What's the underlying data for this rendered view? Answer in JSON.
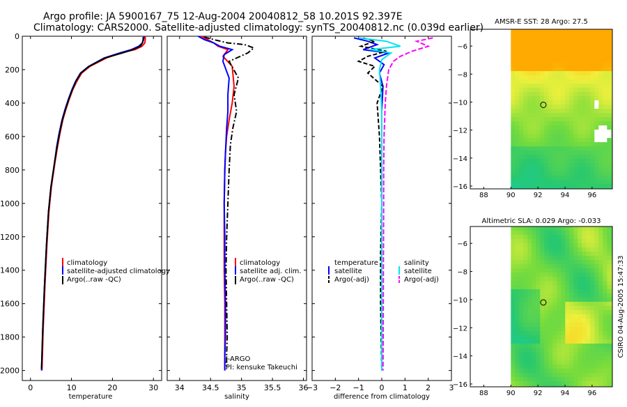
{
  "header": {
    "line1": "Argo profile: JA 5900167_75 12-Aug-2004 20040812_58 10.201S 92.397E",
    "line2": "Climatology: CARS2000. Satellite-adjusted climatology: synTS_20040812.nc (0.039d earlier)"
  },
  "footer_stamp": "CSIRO 04-Aug-2005 15:47:33",
  "colors": {
    "clim": "#ff0000",
    "sat": "#0000ff",
    "argo": "#000000",
    "cyan": "#00e5ee",
    "magenta": "#ff00ff"
  },
  "chart_data": [
    {
      "type": "line",
      "name": "temperature",
      "xlabel": "temperature",
      "xlim": [
        -2,
        32
      ],
      "xticks": [
        0,
        10,
        20,
        30
      ],
      "ylim": [
        2060,
        0
      ],
      "yticks": [
        0,
        200,
        400,
        600,
        800,
        1000,
        1200,
        1400,
        1600,
        1800,
        2000
      ],
      "legend": [
        "climatology",
        "satellite-adjusted climatology",
        "Argo(..raw -QC)"
      ],
      "series": [
        {
          "name": "climatology",
          "color": "#ff0000",
          "x": [
            28.0,
            28.0,
            27.9,
            27.2,
            25.5,
            22.0,
            18.5,
            14.5,
            12.5,
            11.3,
            10.3,
            9.4,
            8.6,
            7.9,
            7.2,
            6.6,
            6.0,
            5.1,
            4.5,
            4.0,
            3.5,
            3.1,
            2.8
          ],
          "y": [
            0,
            20,
            40,
            60,
            80,
            100,
            130,
            180,
            220,
            270,
            320,
            380,
            440,
            500,
            580,
            660,
            750,
            900,
            1050,
            1250,
            1500,
            1750,
            2000
          ]
        },
        {
          "name": "satellite-adjusted climatology",
          "color": "#0000ff",
          "x": [
            27.7,
            27.6,
            27.3,
            26.4,
            24.6,
            21.8,
            18.0,
            14.2,
            12.2,
            11.0,
            10.1,
            9.2,
            8.4,
            7.7,
            7.0,
            6.4,
            5.9,
            5.0,
            4.4,
            3.9,
            3.4,
            3.0,
            2.7
          ],
          "y": [
            0,
            20,
            40,
            60,
            80,
            100,
            130,
            180,
            220,
            270,
            320,
            380,
            440,
            500,
            580,
            660,
            750,
            900,
            1050,
            1250,
            1500,
            1750,
            2000
          ]
        },
        {
          "name": "Argo(..raw -QC)",
          "color": "#000000",
          "x": [
            27.5,
            27.5,
            27.3,
            26.8,
            25.0,
            22.4,
            18.2,
            14.3,
            12.3,
            11.1,
            10.2,
            9.3,
            8.5,
            7.8,
            7.1,
            6.5,
            5.9,
            5.0,
            4.4,
            3.9,
            3.4,
            3.0,
            2.7
          ],
          "y": [
            5,
            20,
            40,
            60,
            80,
            100,
            130,
            180,
            220,
            270,
            320,
            380,
            440,
            500,
            580,
            660,
            750,
            900,
            1050,
            1250,
            1500,
            1750,
            1990
          ]
        }
      ]
    },
    {
      "type": "line",
      "name": "salinity",
      "xlabel": "salinity",
      "xlim": [
        33.8,
        36.05
      ],
      "xticks": [
        34,
        34.5,
        35,
        35.5,
        36
      ],
      "ylim": [
        2060,
        0
      ],
      "legend": [
        "climatology",
        "satellite adj. clim.",
        "Argo(..raw -QC)"
      ],
      "annotations": [
        "J-ARGO",
        "PI: kensuke Takeuchi"
      ],
      "series": [
        {
          "name": "climatology",
          "color": "#ff0000",
          "x": [
            34.35,
            34.45,
            34.55,
            34.62,
            34.78,
            34.7,
            34.85,
            34.88,
            34.85,
            34.8,
            34.76,
            34.74,
            34.73,
            34.72,
            34.72,
            34.72,
            34.73,
            34.73,
            34.73,
            34.73
          ],
          "y": [
            0,
            20,
            40,
            60,
            80,
            120,
            180,
            300,
            400,
            500,
            600,
            700,
            800,
            1000,
            1200,
            1400,
            1600,
            1800,
            1900,
            2000
          ]
        },
        {
          "name": "satellite adj. clim.",
          "color": "#0000ff",
          "x": [
            34.3,
            34.4,
            34.55,
            34.65,
            34.85,
            34.72,
            34.7,
            34.8,
            34.78,
            34.78,
            34.76,
            34.74,
            34.73,
            34.72,
            34.73,
            34.73,
            34.74,
            34.74,
            34.73,
            34.73
          ],
          "y": [
            0,
            20,
            40,
            60,
            80,
            110,
            150,
            250,
            350,
            450,
            550,
            700,
            800,
            1000,
            1200,
            1400,
            1600,
            1800,
            1900,
            2000
          ]
        },
        {
          "name": "Argo(..raw -QC)",
          "color": "#000000",
          "x": [
            34.4,
            34.55,
            34.78,
            35.05,
            35.2,
            35.1,
            34.8,
            34.95,
            34.88,
            34.92,
            34.86,
            34.82,
            34.8,
            34.78,
            34.76,
            34.75,
            34.76,
            34.77,
            34.76,
            34.76
          ],
          "y": [
            5,
            20,
            40,
            50,
            70,
            100,
            150,
            250,
            350,
            450,
            550,
            650,
            800,
            1000,
            1200,
            1400,
            1600,
            1800,
            1900,
            1990
          ]
        }
      ]
    },
    {
      "type": "line",
      "name": "difference",
      "xlabel": "difference from climatology",
      "xlim": [
        -3,
        3
      ],
      "xticks": [
        -3,
        -2,
        -1,
        0,
        1,
        2,
        3
      ],
      "ylim": [
        2060,
        0
      ],
      "legend_left": [
        "temperature",
        "satellite",
        "Argo(-adj)"
      ],
      "legend_right": [
        "salinity",
        "satellite",
        "Argo(-adj)"
      ],
      "series": [
        {
          "name": "temperature satellite",
          "color": "#0000ff",
          "x": [
            -1.2,
            -0.6,
            -0.2,
            -0.8,
            0.3,
            -0.3,
            0.1,
            -0.1,
            0.05,
            0,
            0,
            0,
            0,
            0,
            0
          ],
          "y": [
            10,
            30,
            50,
            80,
            100,
            130,
            170,
            220,
            300,
            450,
            700,
            1000,
            1400,
            1800,
            2000
          ]
        },
        {
          "name": "temperature Argo(-adj)",
          "color": "#000000",
          "x": [
            -0.8,
            -0.3,
            -0.9,
            0.2,
            -0.6,
            -1.0,
            -0.3,
            -0.6,
            0.05,
            -0.2,
            -0.1,
            -0.05,
            0,
            -0.05,
            -0.05,
            0
          ],
          "y": [
            10,
            30,
            60,
            90,
            120,
            150,
            180,
            220,
            300,
            400,
            600,
            800,
            1000,
            1300,
            1600,
            2000
          ]
        },
        {
          "name": "salinity satellite",
          "color": "#00e5ee",
          "x": [
            -1.0,
            0.2,
            0.8,
            -0.5,
            0.4,
            0.0,
            -0.1,
            -0.05,
            0,
            0,
            0,
            0,
            0
          ],
          "y": [
            10,
            30,
            60,
            80,
            100,
            140,
            200,
            300,
            450,
            700,
            1000,
            1500,
            2000
          ]
        },
        {
          "name": "salinity Argo(-adj)",
          "color": "#ff00ff",
          "x": [
            2.2,
            1.5,
            2.0,
            1.3,
            0.8,
            0.5,
            0.3,
            0.2,
            0.15,
            0.1,
            0.08,
            0.08,
            0.07,
            0.06,
            0.05
          ],
          "y": [
            10,
            30,
            60,
            90,
            120,
            150,
            200,
            300,
            400,
            600,
            800,
            1000,
            1400,
            1800,
            2000
          ]
        }
      ]
    },
    {
      "type": "heatmap",
      "name": "sst-map",
      "title": "AMSR-E SST: 28 Argo: 27.5",
      "xlim": [
        87,
        97.5
      ],
      "xticks": [
        88,
        90,
        92,
        94,
        96
      ],
      "ylim": [
        -16.2,
        -4.8
      ],
      "yticks": [
        -6,
        -8,
        -10,
        -12,
        -14,
        -16
      ],
      "argo_position": [
        92.4,
        -10.2
      ]
    },
    {
      "type": "heatmap",
      "name": "sla-map",
      "title": "Altimetric SLA: 0.029 Argo: -0.033",
      "xlim": [
        87,
        97.5
      ],
      "xticks": [
        88,
        90,
        92,
        94,
        96
      ],
      "ylim": [
        -16.2,
        -4.8
      ],
      "yticks": [
        -6,
        -8,
        -10,
        -12,
        -14,
        -16
      ],
      "argo_position": [
        92.4,
        -10.2
      ]
    }
  ]
}
